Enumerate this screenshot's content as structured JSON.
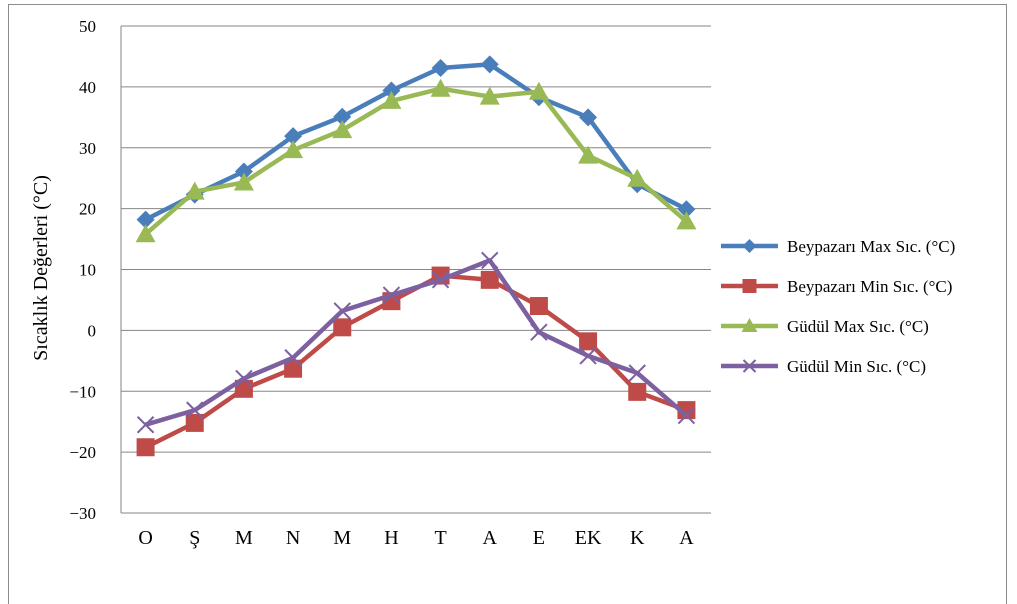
{
  "chart_data": {
    "type": "line",
    "title": "",
    "xlabel": "",
    "ylabel": "Sıcaklık Değerleri  (°C)",
    "ylim": [
      -30,
      50
    ],
    "yticks": [
      50,
      40,
      30,
      20,
      10,
      0,
      -10,
      -20,
      -30
    ],
    "ytick_labels": [
      "50",
      "40",
      "30",
      "20",
      "10",
      "0",
      "−10",
      "−20",
      "−30"
    ],
    "categories": [
      "O",
      "Ş",
      "M",
      "N",
      "M",
      "H",
      "T",
      "A",
      "E",
      "EK",
      "K",
      "A"
    ],
    "grid": true,
    "legend_position": "right",
    "series": [
      {
        "name": "Beypazarı Max Sıc. (°C)",
        "color": "#4a7ebb",
        "marker": "diamond",
        "values": [
          18.2,
          22.3,
          26.1,
          31.9,
          35.1,
          39.4,
          43.1,
          43.7,
          38.3,
          35.0,
          24.0,
          19.9
        ]
      },
      {
        "name": "Beypazarı Min Sıc. (°C)",
        "color": "#be4b48",
        "marker": "square",
        "values": [
          -19.2,
          -15.2,
          -9.6,
          -6.3,
          0.5,
          4.8,
          9.0,
          8.3,
          4.0,
          -1.8,
          -10.1,
          -13.1
        ]
      },
      {
        "name": "Güdül Max Sıc. (°C)",
        "color": "#98b954",
        "marker": "triangle",
        "values": [
          15.8,
          22.8,
          24.3,
          29.6,
          32.9,
          37.7,
          39.7,
          38.4,
          39.2,
          28.7,
          24.9,
          17.9
        ]
      },
      {
        "name": "Güdül Min Sıc. (°C)",
        "color": "#7d60a0",
        "marker": "x",
        "values": [
          -15.5,
          -13.1,
          -7.9,
          -4.5,
          3.2,
          5.8,
          8.3,
          11.5,
          -0.3,
          -4.2,
          -7.0,
          -14.0
        ]
      }
    ]
  }
}
